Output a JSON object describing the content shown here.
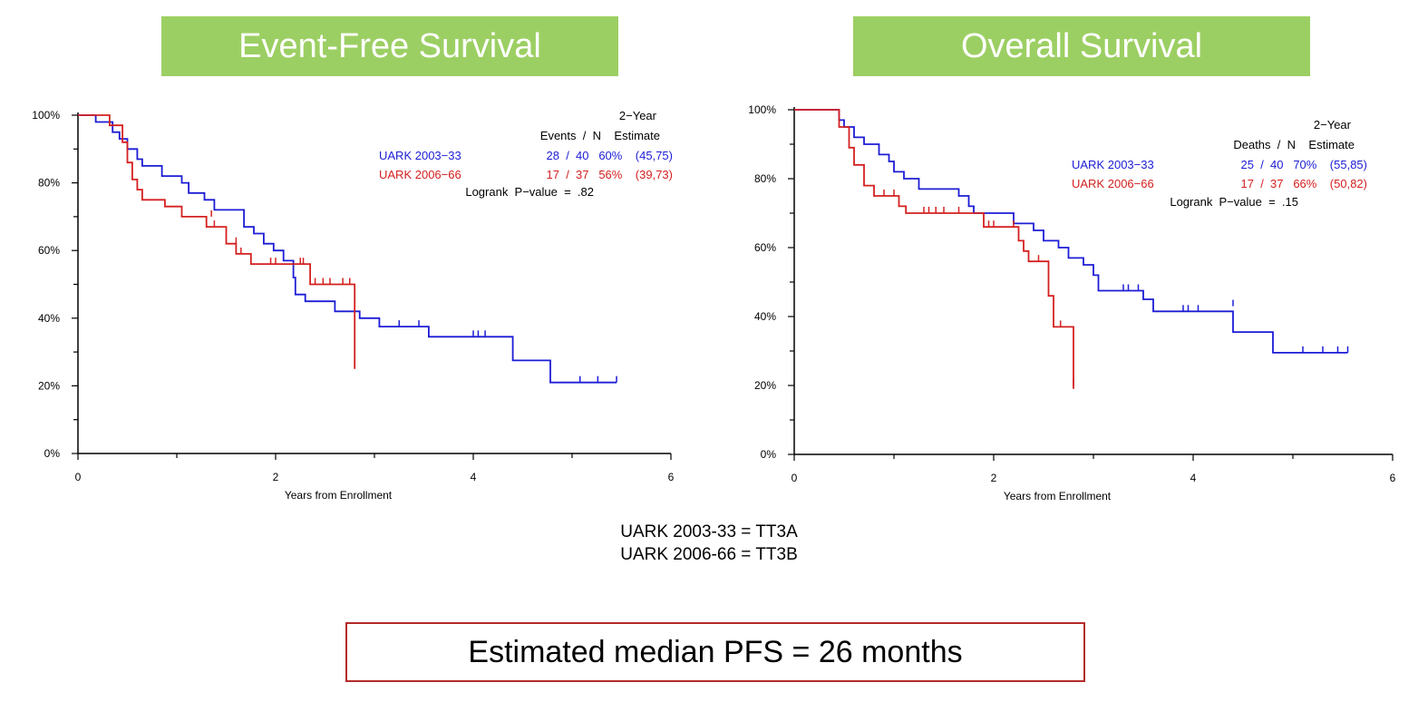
{
  "colors": {
    "banner": "#9ccf63",
    "series_blue": "#1c1cd6",
    "series_red": "#d42020",
    "box_border": "#b42a2a"
  },
  "legend_note": [
    "UARK 2003-33 = TT3A",
    "UARK 2006-66 = TT3B"
  ],
  "summary_box": "Estimated median PFS = 26 months",
  "chart_data": [
    {
      "type": "line",
      "banner": "Event-Free Survival",
      "xlabel": "Years from Enrollment",
      "ylabel": "",
      "xlim": [
        0,
        6
      ],
      "ylim": [
        0,
        100
      ],
      "x_ticks": [
        "0",
        "2",
        "4",
        "6"
      ],
      "y_ticks": [
        "0%",
        "20%",
        "40%",
        "60%",
        "80%",
        "100%"
      ],
      "table": {
        "header_top": "2−Year",
        "header_cols": "Events  /  N    Estimate",
        "rows": [
          {
            "label": "UARK 2003−33",
            "stat": "28  /  40   60%    (45,75)",
            "color": "#1c1cd6"
          },
          {
            "label": "UARK 2006−66",
            "stat": "17  /  37   56%    (39,73)",
            "color": "#d42020"
          }
        ],
        "pvalue": "Logrank  P−value  =  .82"
      },
      "series": [
        {
          "name": "UARK 2003−33",
          "color": "#1c1cd6",
          "points": [
            [
              0,
              100
            ],
            [
              0.18,
              100
            ],
            [
              0.18,
              98
            ],
            [
              0.35,
              98
            ],
            [
              0.35,
              95
            ],
            [
              0.42,
              95
            ],
            [
              0.42,
              93
            ],
            [
              0.5,
              93
            ],
            [
              0.5,
              90
            ],
            [
              0.6,
              90
            ],
            [
              0.6,
              87
            ],
            [
              0.65,
              87
            ],
            [
              0.65,
              85
            ],
            [
              0.85,
              85
            ],
            [
              0.85,
              82
            ],
            [
              1.05,
              82
            ],
            [
              1.05,
              80
            ],
            [
              1.12,
              80
            ],
            [
              1.12,
              77
            ],
            [
              1.28,
              77
            ],
            [
              1.28,
              75
            ],
            [
              1.38,
              75
            ],
            [
              1.38,
              72
            ],
            [
              1.68,
              72
            ],
            [
              1.68,
              67
            ],
            [
              1.78,
              67
            ],
            [
              1.78,
              65
            ],
            [
              1.88,
              65
            ],
            [
              1.88,
              62
            ],
            [
              1.98,
              62
            ],
            [
              1.98,
              60
            ],
            [
              2.08,
              60
            ],
            [
              2.08,
              57
            ],
            [
              2.18,
              57
            ],
            [
              2.18,
              52
            ],
            [
              2.2,
              52
            ],
            [
              2.2,
              47
            ],
            [
              2.3,
              47
            ],
            [
              2.3,
              45
            ],
            [
              2.6,
              45
            ],
            [
              2.6,
              42
            ],
            [
              2.85,
              42
            ],
            [
              2.85,
              40
            ],
            [
              3.05,
              40
            ],
            [
              3.05,
              37.5
            ],
            [
              3.55,
              37.5
            ],
            [
              3.55,
              34.5
            ],
            [
              4.4,
              34.5
            ],
            [
              4.4,
              27.5
            ],
            [
              4.78,
              27.5
            ],
            [
              4.78,
              21
            ],
            [
              5.45,
              21
            ]
          ],
          "censors": [
            [
              3.25,
              37.5
            ],
            [
              3.45,
              37.5
            ],
            [
              4.0,
              34.5
            ],
            [
              4.05,
              34.5
            ],
            [
              4.12,
              34.5
            ],
            [
              5.08,
              21
            ],
            [
              5.26,
              21
            ],
            [
              5.45,
              21
            ]
          ]
        },
        {
          "name": "UARK 2006−66",
          "color": "#d42020",
          "points": [
            [
              0,
              100
            ],
            [
              0.32,
              100
            ],
            [
              0.32,
              97
            ],
            [
              0.45,
              97
            ],
            [
              0.45,
              92
            ],
            [
              0.5,
              92
            ],
            [
              0.5,
              86
            ],
            [
              0.55,
              86
            ],
            [
              0.55,
              81
            ],
            [
              0.6,
              81
            ],
            [
              0.6,
              78
            ],
            [
              0.65,
              78
            ],
            [
              0.65,
              75
            ],
            [
              0.88,
              75
            ],
            [
              0.88,
              73
            ],
            [
              1.05,
              73
            ],
            [
              1.05,
              70
            ],
            [
              1.3,
              70
            ],
            [
              1.3,
              67
            ],
            [
              1.5,
              67
            ],
            [
              1.5,
              62
            ],
            [
              1.6,
              62
            ],
            [
              1.6,
              59
            ],
            [
              1.75,
              59
            ],
            [
              1.75,
              56
            ],
            [
              2.35,
              56
            ],
            [
              2.35,
              50
            ],
            [
              2.8,
              50
            ],
            [
              2.8,
              25
            ]
          ],
          "censors": [
            [
              1.35,
              70
            ],
            [
              1.38,
              67
            ],
            [
              1.6,
              62
            ],
            [
              1.65,
              59
            ],
            [
              1.95,
              56
            ],
            [
              2.0,
              56
            ],
            [
              2.25,
              56
            ],
            [
              2.28,
              56
            ],
            [
              2.4,
              50
            ],
            [
              2.48,
              50
            ],
            [
              2.55,
              50
            ],
            [
              2.68,
              50
            ],
            [
              2.75,
              50
            ],
            [
              2.8,
              26
            ]
          ]
        }
      ]
    },
    {
      "type": "line",
      "banner": "Overall Survival",
      "xlabel": "Years from Enrollment",
      "ylabel": "",
      "xlim": [
        0,
        6
      ],
      "ylim": [
        0,
        100
      ],
      "x_ticks": [
        "0",
        "2",
        "4",
        "6"
      ],
      "y_ticks": [
        "0%",
        "20%",
        "40%",
        "60%",
        "80%",
        "100%"
      ],
      "table": {
        "header_top": "2−Year",
        "header_cols": "Deaths  /  N    Estimate",
        "rows": [
          {
            "label": "UARK 2003−33",
            "stat": "25  /  40   70%    (55,85)",
            "color": "#1c1cd6"
          },
          {
            "label": "UARK 2006−66",
            "stat": "17  /  37   66%    (50,82)",
            "color": "#d42020"
          }
        ],
        "pvalue": "Logrank  P−value  =  .15"
      },
      "series": [
        {
          "name": "UARK 2003−33",
          "color": "#1c1cd6",
          "points": [
            [
              0,
              100
            ],
            [
              0.45,
              100
            ],
            [
              0.45,
              97
            ],
            [
              0.5,
              97
            ],
            [
              0.5,
              95
            ],
            [
              0.6,
              95
            ],
            [
              0.6,
              92
            ],
            [
              0.7,
              92
            ],
            [
              0.7,
              90
            ],
            [
              0.85,
              90
            ],
            [
              0.85,
              87
            ],
            [
              0.95,
              87
            ],
            [
              0.95,
              85
            ],
            [
              1.0,
              85
            ],
            [
              1.0,
              82
            ],
            [
              1.1,
              82
            ],
            [
              1.1,
              80
            ],
            [
              1.25,
              80
            ],
            [
              1.25,
              77
            ],
            [
              1.65,
              77
            ],
            [
              1.65,
              75
            ],
            [
              1.75,
              75
            ],
            [
              1.75,
              72
            ],
            [
              1.8,
              72
            ],
            [
              1.8,
              70
            ],
            [
              2.2,
              70
            ],
            [
              2.2,
              67
            ],
            [
              2.4,
              67
            ],
            [
              2.4,
              65
            ],
            [
              2.5,
              65
            ],
            [
              2.5,
              62
            ],
            [
              2.65,
              62
            ],
            [
              2.65,
              60
            ],
            [
              2.75,
              60
            ],
            [
              2.75,
              57
            ],
            [
              2.9,
              57
            ],
            [
              2.9,
              55
            ],
            [
              3.0,
              55
            ],
            [
              3.0,
              52
            ],
            [
              3.05,
              52
            ],
            [
              3.05,
              47.5
            ],
            [
              3.5,
              47.5
            ],
            [
              3.5,
              45
            ],
            [
              3.6,
              45
            ],
            [
              3.6,
              41.5
            ],
            [
              4.4,
              41.5
            ],
            [
              4.4,
              35.5
            ],
            [
              4.8,
              35.5
            ],
            [
              4.8,
              29.5
            ],
            [
              5.55,
              29.5
            ]
          ],
          "censors": [
            [
              3.3,
              47.5
            ],
            [
              3.35,
              47.5
            ],
            [
              3.45,
              47.5
            ],
            [
              3.9,
              41.5
            ],
            [
              3.95,
              41.5
            ],
            [
              4.05,
              41.5
            ],
            [
              4.4,
              43
            ],
            [
              5.1,
              29.5
            ],
            [
              5.3,
              29.5
            ],
            [
              5.45,
              29.5
            ],
            [
              5.55,
              29.5
            ]
          ]
        },
        {
          "name": "UARK 2006−66",
          "color": "#d42020",
          "points": [
            [
              0,
              100
            ],
            [
              0.45,
              100
            ],
            [
              0.45,
              95
            ],
            [
              0.55,
              95
            ],
            [
              0.55,
              89
            ],
            [
              0.6,
              89
            ],
            [
              0.6,
              84
            ],
            [
              0.7,
              84
            ],
            [
              0.7,
              78
            ],
            [
              0.8,
              78
            ],
            [
              0.8,
              75
            ],
            [
              1.05,
              75
            ],
            [
              1.05,
              72
            ],
            [
              1.12,
              72
            ],
            [
              1.12,
              70
            ],
            [
              1.9,
              70
            ],
            [
              1.9,
              66
            ],
            [
              2.25,
              66
            ],
            [
              2.25,
              62
            ],
            [
              2.3,
              62
            ],
            [
              2.3,
              59
            ],
            [
              2.35,
              59
            ],
            [
              2.35,
              56
            ],
            [
              2.55,
              56
            ],
            [
              2.55,
              46
            ],
            [
              2.6,
              46
            ],
            [
              2.6,
              37
            ],
            [
              2.8,
              37
            ],
            [
              2.8,
              19
            ]
          ],
          "censors": [
            [
              0.9,
              75
            ],
            [
              1.0,
              75
            ],
            [
              1.3,
              70
            ],
            [
              1.35,
              70
            ],
            [
              1.42,
              70
            ],
            [
              1.5,
              70
            ],
            [
              1.65,
              70
            ],
            [
              1.95,
              66
            ],
            [
              2.0,
              66
            ],
            [
              2.2,
              66
            ],
            [
              2.45,
              56
            ],
            [
              2.67,
              37
            ],
            [
              2.8,
              20
            ]
          ]
        }
      ]
    }
  ]
}
